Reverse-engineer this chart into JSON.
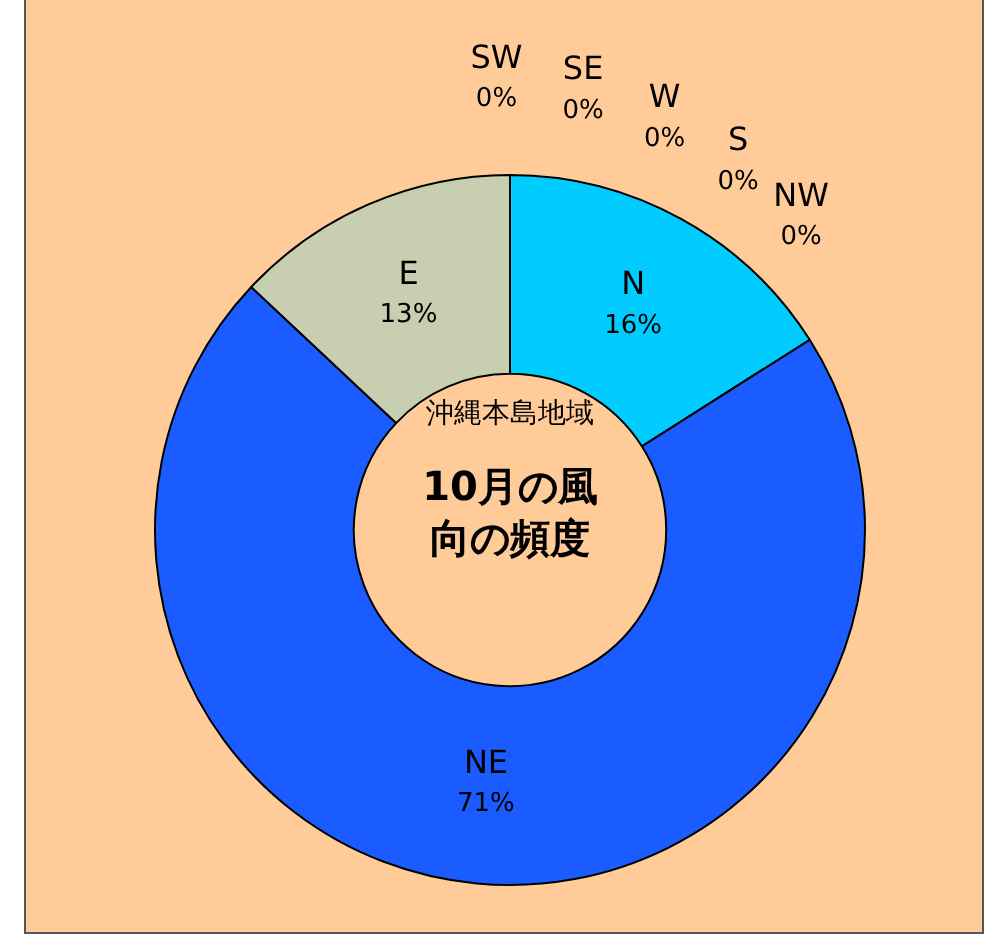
{
  "chart_data": {
    "type": "donut",
    "title": "10月の風向の頻度",
    "subtitle": "沖縄本島地域",
    "categories": [
      "N",
      "NE",
      "E",
      "SW",
      "SE",
      "W",
      "S",
      "NW"
    ],
    "values": [
      16,
      71,
      13,
      0,
      0,
      0,
      0,
      0
    ],
    "colors": [
      "#00ccff",
      "#1a5cff",
      "#c8cfb0",
      "#3399ff",
      "#3399ff",
      "#3399ff",
      "#3399ff",
      "#3399ff"
    ],
    "value_labels": [
      "16%",
      "71%",
      "13%",
      "0%",
      "0%",
      "0%",
      "0%",
      "0%"
    ],
    "legend": false
  }
}
